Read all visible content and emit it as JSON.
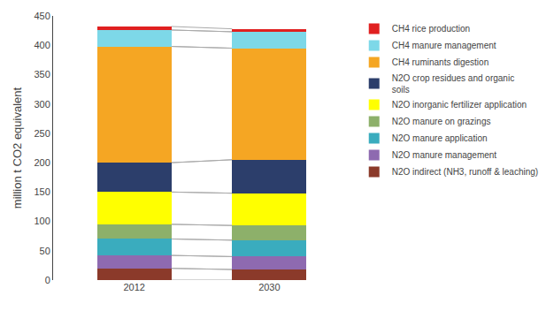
{
  "chart_data": {
    "type": "bar",
    "stacked": true,
    "categories": [
      "2012",
      "2030"
    ],
    "series": [
      {
        "name": "N2O indirect (NH3, runoff & leaching)",
        "color": "#8b3a2a",
        "values": [
          20,
          18
        ]
      },
      {
        "name": "N2O manure management",
        "color": "#8e6ab0",
        "values": [
          22,
          22
        ]
      },
      {
        "name": "N2O manure application",
        "color": "#3aacbe",
        "values": [
          28,
          28
        ]
      },
      {
        "name": "N2O manure on grazings",
        "color": "#8db06a",
        "values": [
          25,
          25
        ]
      },
      {
        "name": "N2O inorganic fertilizer application",
        "color": "#ffff00",
        "values": [
          55,
          55
        ]
      },
      {
        "name": "N2O crop residues and organic\nsoils",
        "color": "#2c3e6b",
        "values": [
          50,
          57
        ]
      },
      {
        "name": "CH4 ruminants digestion",
        "color": "#f5a623",
        "values": [
          198,
          190
        ]
      },
      {
        "name": "CH4 manure management",
        "color": "#7dd8e8",
        "values": [
          28,
          28
        ]
      },
      {
        "name": "CH4 rice production",
        "color": "#e02020",
        "values": [
          6,
          5
        ]
      }
    ],
    "ylabel": "million t CO2 equivalent",
    "ylim": [
      0,
      450
    ],
    "yticks": [
      0,
      50,
      100,
      150,
      200,
      250,
      300,
      350,
      400,
      450
    ],
    "grid": false,
    "legend": "right"
  }
}
